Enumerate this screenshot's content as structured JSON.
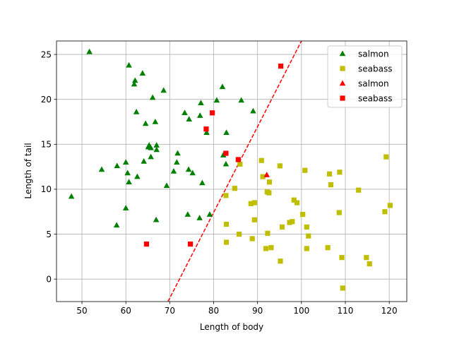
{
  "chart_data": {
    "type": "scatter",
    "title": "",
    "xlabel": "Length of body",
    "ylabel": "Length of tail",
    "xlim": [
      44.2,
      124.0
    ],
    "ylim": [
      -2.5,
      26.5
    ],
    "x_ticks": [
      50,
      60,
      70,
      80,
      90,
      100,
      110,
      120
    ],
    "y_ticks": [
      0,
      5,
      10,
      15,
      20,
      25
    ],
    "x_tick_labels": [
      "50",
      "60",
      "70",
      "80",
      "90",
      "100",
      "110",
      "120"
    ],
    "y_tick_labels": [
      "0",
      "5",
      "10",
      "15",
      "20",
      "25"
    ],
    "grid": true,
    "legend_position": "top-right",
    "series": [
      {
        "name": "salmon",
        "marker": "triangle",
        "color": "#008000",
        "points": [
          [
            51.7,
            25.3
          ],
          [
            47.6,
            9.2
          ],
          [
            54.5,
            12.2
          ],
          [
            57.9,
            6.0
          ],
          [
            58.0,
            12.6
          ],
          [
            60.0,
            13.0
          ],
          [
            60.0,
            7.9
          ],
          [
            60.4,
            11.8
          ],
          [
            60.7,
            10.8
          ],
          [
            60.7,
            23.8
          ],
          [
            61.9,
            21.7
          ],
          [
            62.1,
            22.1
          ],
          [
            62.4,
            18.6
          ],
          [
            62.6,
            11.4
          ],
          [
            63.8,
            22.9
          ],
          [
            64.1,
            13.1
          ],
          [
            64.5,
            17.3
          ],
          [
            65.1,
            14.7
          ],
          [
            65.3,
            14.9
          ],
          [
            65.7,
            14.6
          ],
          [
            65.7,
            13.6
          ],
          [
            66.1,
            20.2
          ],
          [
            66.7,
            17.5
          ],
          [
            67.0,
            14.9
          ],
          [
            67.0,
            14.4
          ],
          [
            66.9,
            6.6
          ],
          [
            68.6,
            21.0
          ],
          [
            69.3,
            10.4
          ],
          [
            70.9,
            12.0
          ],
          [
            71.8,
            14.0
          ],
          [
            71.6,
            13.0
          ],
          [
            73.4,
            18.5
          ],
          [
            74.3,
            12.2
          ],
          [
            74.4,
            17.8
          ],
          [
            74.1,
            7.2
          ],
          [
            75.2,
            11.8
          ],
          [
            76.8,
            6.8
          ],
          [
            76.9,
            18.2
          ],
          [
            77.1,
            19.6
          ],
          [
            77.4,
            10.7
          ],
          [
            78.4,
            16.3
          ],
          [
            79.1,
            7.2
          ],
          [
            80.7,
            19.9
          ],
          [
            82.0,
            21.4
          ],
          [
            82.2,
            13.8
          ],
          [
            82.9,
            16.3
          ],
          [
            82.8,
            12.8
          ],
          [
            86.3,
            19.9
          ],
          [
            89.0,
            18.7
          ]
        ]
      },
      {
        "name": "seabass",
        "marker": "square",
        "color": "#bfbf00",
        "points": [
          [
            82.8,
            9.3
          ],
          [
            82.9,
            6.1
          ],
          [
            82.9,
            4.1
          ],
          [
            84.8,
            10.1
          ],
          [
            85.8,
            5.0
          ],
          [
            86.0,
            12.8
          ],
          [
            88.5,
            8.4
          ],
          [
            88.8,
            4.5
          ],
          [
            89.3,
            8.5
          ],
          [
            89.3,
            6.6
          ],
          [
            90.9,
            13.2
          ],
          [
            91.2,
            11.4
          ],
          [
            91.9,
            3.4
          ],
          [
            92.2,
            9.7
          ],
          [
            92.3,
            5.1
          ],
          [
            92.6,
            9.6
          ],
          [
            92.7,
            10.8
          ],
          [
            93.1,
            3.5
          ],
          [
            95.1,
            12.6
          ],
          [
            95.2,
            2.0
          ],
          [
            95.6,
            5.8
          ],
          [
            97.3,
            6.3
          ],
          [
            97.9,
            6.4
          ],
          [
            98.3,
            8.8
          ],
          [
            99.0,
            8.5
          ],
          [
            100.3,
            7.2
          ],
          [
            100.8,
            12.1
          ],
          [
            101.2,
            5.8
          ],
          [
            101.2,
            3.4
          ],
          [
            101.6,
            4.8
          ],
          [
            106.0,
            3.5
          ],
          [
            106.4,
            11.7
          ],
          [
            106.7,
            10.5
          ],
          [
            108.7,
            11.9
          ],
          [
            108.6,
            7.4
          ],
          [
            109.2,
            2.4
          ],
          [
            109.4,
            -1.0
          ],
          [
            113.0,
            9.9
          ],
          [
            114.8,
            2.4
          ],
          [
            115.5,
            1.7
          ],
          [
            119.0,
            7.5
          ],
          [
            119.3,
            13.6
          ],
          [
            120.2,
            8.2
          ]
        ]
      },
      {
        "name": "salmon",
        "marker": "triangle",
        "color": "#ff0000",
        "points": [
          [
            92.1,
            11.6
          ]
        ]
      },
      {
        "name": "seabass",
        "marker": "square",
        "color": "#ff0000",
        "points": [
          [
            64.7,
            3.9
          ],
          [
            74.7,
            3.9
          ],
          [
            78.3,
            16.7
          ],
          [
            79.7,
            18.5
          ],
          [
            82.8,
            14.0
          ],
          [
            85.6,
            13.3
          ],
          [
            95.3,
            23.7
          ]
        ]
      }
    ],
    "decision_line": {
      "color": "#ff0000",
      "style": "dashed",
      "points": [
        [
          69.6,
          -2.5
        ],
        [
          100.0,
          26.5
        ]
      ]
    }
  }
}
